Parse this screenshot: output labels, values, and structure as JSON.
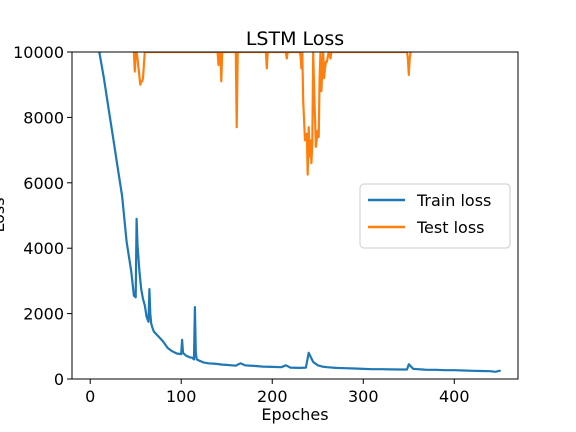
{
  "chart_data": {
    "type": "line",
    "title": "LSTM Loss",
    "xlabel": "Epoches",
    "ylabel": "Loss",
    "xlim": [
      -20,
      470
    ],
    "ylim": [
      0,
      10000
    ],
    "xticks": [
      0,
      100,
      200,
      300,
      400
    ],
    "yticks": [
      0,
      2000,
      4000,
      6000,
      8000,
      10000
    ],
    "grid": false,
    "legend_position": "center-right",
    "series": [
      {
        "name": "Train loss",
        "color": "#1f77b4",
        "x": [
          10,
          15,
          20,
          25,
          30,
          35,
          40,
          45,
          48,
          50,
          51,
          52,
          54,
          56,
          58,
          60,
          62,
          64,
          65,
          66,
          67,
          68,
          70,
          75,
          80,
          85,
          90,
          95,
          100,
          101,
          102,
          105,
          108,
          110,
          112,
          114,
          115,
          116,
          117,
          120,
          125,
          130,
          135,
          140,
          145,
          150,
          155,
          160,
          165,
          170,
          175,
          180,
          190,
          200,
          210,
          215,
          220,
          230,
          237,
          240,
          245,
          250,
          255,
          260,
          270,
          280,
          290,
          300,
          310,
          320,
          330,
          340,
          348,
          350,
          355,
          360,
          365,
          370,
          380,
          390,
          400,
          410,
          420,
          430,
          440,
          445,
          450
        ],
        "y": [
          10000,
          9200,
          8300,
          7400,
          6500,
          5600,
          4200,
          3300,
          2550,
          2500,
          4900,
          4100,
          3300,
          2750,
          2450,
          2250,
          1900,
          1750,
          2750,
          2000,
          1700,
          1600,
          1450,
          1300,
          1150,
          950,
          850,
          780,
          760,
          1200,
          800,
          720,
          680,
          660,
          650,
          600,
          2200,
          800,
          600,
          560,
          500,
          480,
          470,
          460,
          440,
          430,
          420,
          410,
          480,
          420,
          410,
          400,
          380,
          370,
          360,
          420,
          350,
          340,
          350,
          800,
          520,
          420,
          380,
          360,
          340,
          330,
          320,
          310,
          300,
          300,
          295,
          290,
          290,
          450,
          310,
          300,
          290,
          280,
          280,
          270,
          270,
          260,
          250,
          245,
          240,
          220,
          250
        ]
      },
      {
        "name": "Test loss",
        "color": "#ff7f0e",
        "x": [
          48,
          49,
          50,
          51,
          52,
          55,
          56,
          57,
          58,
          60,
          61,
          140,
          141,
          142,
          143,
          144,
          145,
          160,
          161,
          162,
          163,
          193,
          194,
          195,
          196,
          215,
          216,
          217,
          230,
          231,
          232,
          233,
          234,
          236,
          238,
          239,
          240,
          241,
          242,
          243,
          244,
          245,
          246,
          247,
          248,
          250,
          251,
          252,
          253,
          254,
          255,
          256,
          257,
          258,
          259,
          260,
          262,
          264,
          265,
          348,
          349,
          350,
          351,
          352
        ],
        "y": [
          10000,
          9400,
          10000,
          10000,
          9800,
          9000,
          9100,
          9100,
          9200,
          10000,
          10000,
          10000,
          9600,
          10000,
          10000,
          9100,
          10000,
          10000,
          7700,
          10000,
          10000,
          10000,
          9500,
          10000,
          10000,
          10000,
          9800,
          10000,
          10000,
          9900,
          9500,
          10000,
          8500,
          7300,
          7500,
          6250,
          7700,
          6800,
          7300,
          6600,
          7200,
          10000,
          8900,
          8000,
          7100,
          7600,
          7400,
          9200,
          10000,
          8800,
          9500,
          10000,
          9200,
          9500,
          9700,
          9700,
          10000,
          9800,
          10000,
          10000,
          9800,
          9300,
          9800,
          10000
        ]
      }
    ]
  }
}
